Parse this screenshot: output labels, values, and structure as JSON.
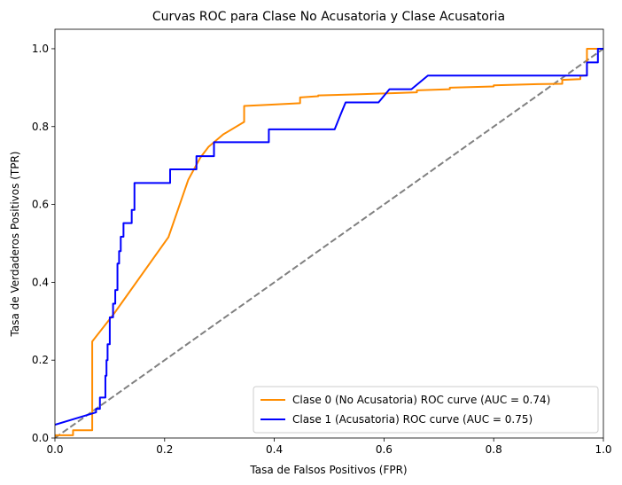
{
  "chart_data": {
    "type": "line",
    "title": "Curvas ROC para Clase No Acusatoria y Clase Acusatoria",
    "xlabel": "Tasa de Falsos Positivos (FPR)",
    "ylabel": "Tasa de Verdaderos Positivos (TPR)",
    "xlim": [
      0,
      1
    ],
    "ylim": [
      0,
      1.05
    ],
    "x_ticks": [
      "0.0",
      "0.2",
      "0.4",
      "0.6",
      "0.8",
      "1.0"
    ],
    "y_ticks": [
      "0.0",
      "0.2",
      "0.4",
      "0.6",
      "0.8",
      "1.0"
    ],
    "grid": false,
    "legend_position": "lower-right",
    "series": [
      {
        "name": "Clase 0 (No Acusatoria) ROC curve (AUC = 0.74)",
        "color": "#ff8c00",
        "points": [
          [
            0.0,
            0.0
          ],
          [
            0.0,
            0.007
          ],
          [
            0.033,
            0.007
          ],
          [
            0.033,
            0.02
          ],
          [
            0.068,
            0.02
          ],
          [
            0.068,
            0.248
          ],
          [
            0.108,
            0.32
          ],
          [
            0.207,
            0.516
          ],
          [
            0.243,
            0.663
          ],
          [
            0.265,
            0.72
          ],
          [
            0.28,
            0.748
          ],
          [
            0.307,
            0.78
          ],
          [
            0.345,
            0.812
          ],
          [
            0.345,
            0.853
          ],
          [
            0.375,
            0.855
          ],
          [
            0.447,
            0.86
          ],
          [
            0.447,
            0.875
          ],
          [
            0.48,
            0.878
          ],
          [
            0.48,
            0.88
          ],
          [
            0.55,
            0.883
          ],
          [
            0.62,
            0.886
          ],
          [
            0.66,
            0.888
          ],
          [
            0.66,
            0.893
          ],
          [
            0.72,
            0.896
          ],
          [
            0.72,
            0.9
          ],
          [
            0.8,
            0.903
          ],
          [
            0.8,
            0.906
          ],
          [
            0.88,
            0.909
          ],
          [
            0.925,
            0.91
          ],
          [
            0.925,
            0.92
          ],
          [
            0.958,
            0.922
          ],
          [
            0.958,
            0.93
          ],
          [
            0.97,
            0.932
          ],
          [
            0.97,
            1.0
          ],
          [
            1.0,
            1.0
          ]
        ]
      },
      {
        "name": "Clase 1 (Acusatoria) ROC curve (AUC = 0.75)",
        "color": "#0000ff",
        "points": [
          [
            0.0,
            0.034
          ],
          [
            0.075,
            0.066
          ],
          [
            0.075,
            0.075
          ],
          [
            0.082,
            0.075
          ],
          [
            0.082,
            0.104
          ],
          [
            0.092,
            0.104
          ],
          [
            0.092,
            0.16
          ],
          [
            0.094,
            0.16
          ],
          [
            0.094,
            0.2
          ],
          [
            0.096,
            0.2
          ],
          [
            0.096,
            0.241
          ],
          [
            0.1,
            0.241
          ],
          [
            0.1,
            0.31
          ],
          [
            0.106,
            0.31
          ],
          [
            0.106,
            0.345
          ],
          [
            0.11,
            0.345
          ],
          [
            0.11,
            0.38
          ],
          [
            0.114,
            0.38
          ],
          [
            0.114,
            0.448
          ],
          [
            0.117,
            0.448
          ],
          [
            0.117,
            0.48
          ],
          [
            0.12,
            0.48
          ],
          [
            0.12,
            0.517
          ],
          [
            0.125,
            0.517
          ],
          [
            0.125,
            0.552
          ],
          [
            0.14,
            0.552
          ],
          [
            0.14,
            0.586
          ],
          [
            0.145,
            0.586
          ],
          [
            0.145,
            0.655
          ],
          [
            0.21,
            0.655
          ],
          [
            0.21,
            0.69
          ],
          [
            0.258,
            0.69
          ],
          [
            0.258,
            0.724
          ],
          [
            0.29,
            0.724
          ],
          [
            0.29,
            0.76
          ],
          [
            0.39,
            0.76
          ],
          [
            0.39,
            0.793
          ],
          [
            0.51,
            0.793
          ],
          [
            0.52,
            0.828
          ],
          [
            0.53,
            0.862
          ],
          [
            0.59,
            0.862
          ],
          [
            0.61,
            0.896
          ],
          [
            0.65,
            0.896
          ],
          [
            0.68,
            0.931
          ],
          [
            0.97,
            0.931
          ],
          [
            0.97,
            0.965
          ],
          [
            0.99,
            0.965
          ],
          [
            0.99,
            1.0
          ],
          [
            1.0,
            1.0
          ]
        ]
      },
      {
        "name": "",
        "color": "#808080",
        "dashed": true,
        "points": [
          [
            0.0,
            0.0
          ],
          [
            1.0,
            1.0
          ]
        ]
      }
    ]
  }
}
